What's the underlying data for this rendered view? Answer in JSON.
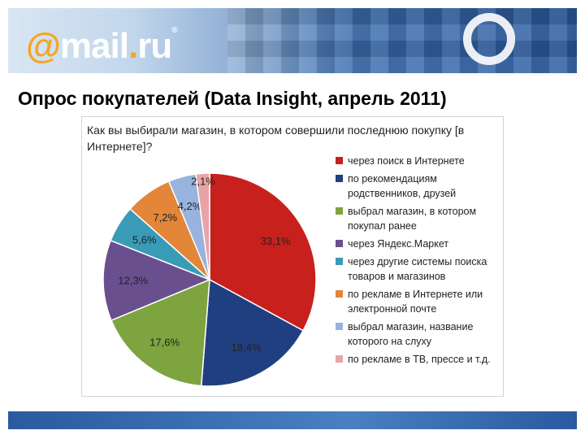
{
  "header": {
    "logo_at": "@",
    "logo_mail": "mail",
    "logo_dot": ".",
    "logo_ru": "ru",
    "logo_reg": "®"
  },
  "page_title": "Опрос покупателей (Data Insight, апрель 2011)",
  "chart_data": {
    "type": "pie",
    "title": "Как вы выбирали магазин, в котором совершили последнюю покупку [в Интернете]?",
    "categories": [
      "через поиск в Интернете",
      "по рекомендациям родственников, друзей",
      "выбрал магазин, в котором покупал ранее",
      "через Яндекс.Маркет",
      "через другие системы поиска товаров и магазинов",
      "по рекламе в Интернете или электронной почте",
      "выбрал магазин, название которого на слуху",
      "по рекламе в ТВ, прессе и т.д."
    ],
    "values": [
      33.1,
      18.4,
      17.6,
      12.3,
      5.6,
      7.2,
      4.2,
      2.1
    ],
    "labels": [
      "33,1%",
      "18,4%",
      "17,6%",
      "12,3%",
      "5,6%",
      "7,2%",
      "4,2%",
      "2,1%"
    ],
    "colors": [
      "#c8201c",
      "#1f3f80",
      "#7ea43f",
      "#6a4f8e",
      "#3a9bb6",
      "#e3863a",
      "#98b3dd",
      "#e8a4a4"
    ],
    "legend_position": "right"
  }
}
